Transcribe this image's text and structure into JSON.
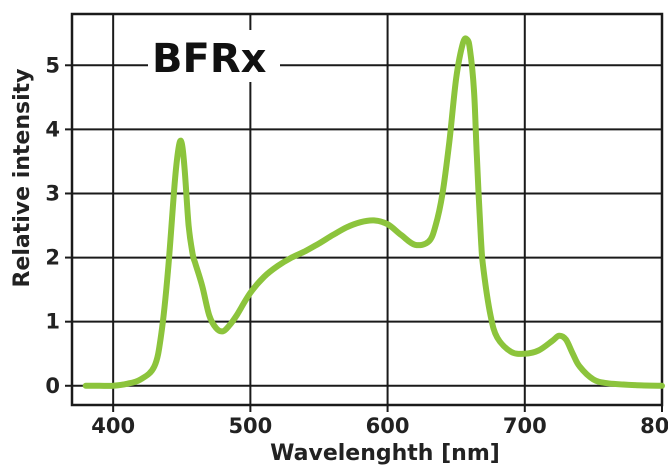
{
  "chart_data": {
    "type": "line",
    "title": "BFRx",
    "xlabel": "Wavelenghth [nm]",
    "ylabel": "Relative intensity",
    "xlim": [
      370,
      800
    ],
    "ylim": [
      -0.3,
      5.8
    ],
    "xticks": [
      "400",
      "500",
      "600",
      "700",
      "800"
    ],
    "yticks": [
      "0",
      "1",
      "2",
      "3",
      "4",
      "5"
    ],
    "grid": true,
    "colors": {
      "line": "#8cc43c",
      "grid": "#1a1a1a",
      "axis": "#1a1a1a"
    },
    "series": [
      {
        "x": [
          380,
          390,
          400,
          410,
          420,
          430,
          435,
          440,
          445,
          448,
          450,
          452,
          455,
          458,
          460,
          465,
          470,
          475,
          480,
          485,
          490,
          500,
          510,
          520,
          530,
          540,
          550,
          560,
          570,
          580,
          590,
          600,
          610,
          620,
          630,
          635,
          640,
          645,
          650,
          655,
          658,
          660,
          663,
          665,
          668,
          670,
          675,
          680,
          690,
          700,
          710,
          720,
          725,
          730,
          735,
          740,
          750,
          760,
          780,
          800
        ],
        "y": [
          0.0,
          0.0,
          0.0,
          0.03,
          0.1,
          0.3,
          0.8,
          1.8,
          3.2,
          3.75,
          3.78,
          3.4,
          2.5,
          2.05,
          1.9,
          1.55,
          1.1,
          0.9,
          0.85,
          0.95,
          1.1,
          1.45,
          1.7,
          1.87,
          2.0,
          2.1,
          2.22,
          2.35,
          2.47,
          2.55,
          2.58,
          2.52,
          2.35,
          2.2,
          2.25,
          2.5,
          3.0,
          3.8,
          4.8,
          5.35,
          5.4,
          5.25,
          4.6,
          3.6,
          2.3,
          1.8,
          1.1,
          0.75,
          0.53,
          0.5,
          0.55,
          0.7,
          0.78,
          0.72,
          0.5,
          0.3,
          0.1,
          0.04,
          0.01,
          0.0
        ]
      }
    ]
  }
}
